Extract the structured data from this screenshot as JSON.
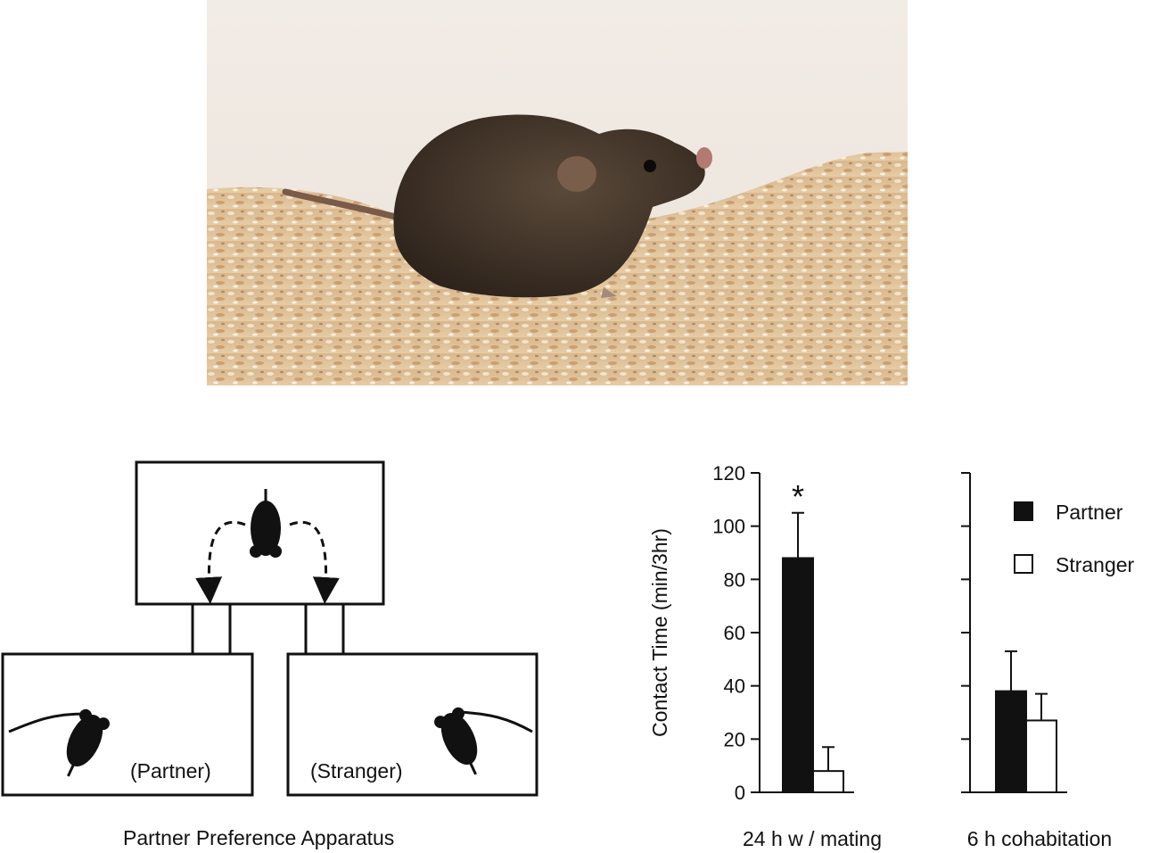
{
  "photo": {
    "subject": "vole-photo"
  },
  "diagram": {
    "caption": "Partner Preference Apparatus",
    "left_label": "(Partner)",
    "right_label": "(Stranger)"
  },
  "chart_data": {
    "type": "bar",
    "ylabel": "Contact Time (min/3hr)",
    "ylim": [
      0,
      120
    ],
    "yticks": [
      "0",
      "20",
      "40",
      "60",
      "80",
      "100",
      "120"
    ],
    "groups": [
      {
        "label": "24 h w / mating",
        "significance": "*"
      },
      {
        "label": "6 h cohabitation",
        "significance": ""
      }
    ],
    "series": [
      {
        "name": "Partner",
        "color": "#111111",
        "values": [
          88,
          38
        ],
        "errors": [
          17,
          15
        ]
      },
      {
        "name": "Stranger",
        "color": "#ffffff",
        "values": [
          8,
          27
        ],
        "errors": [
          9,
          10
        ]
      }
    ],
    "legend_position": "top-right"
  }
}
